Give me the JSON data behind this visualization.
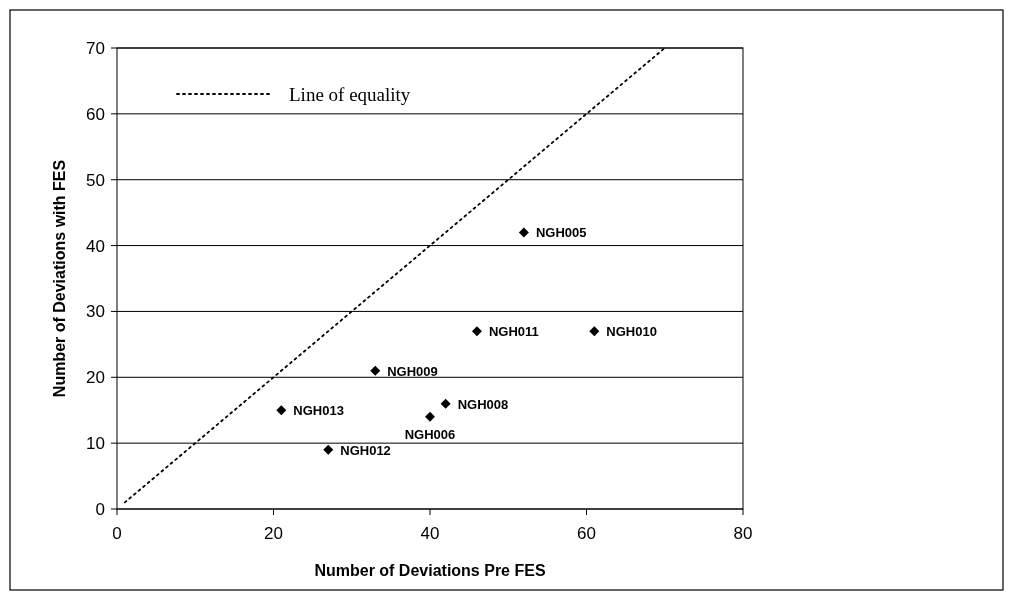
{
  "chart_data": {
    "type": "scatter",
    "xlabel": "Number of Deviations Pre FES",
    "ylabel": "Number of Deviations with FES",
    "xlim": [
      0,
      80
    ],
    "xticks": [
      0,
      20,
      40,
      60,
      80
    ],
    "ylim": [
      0,
      70
    ],
    "yticks": [
      0,
      10,
      20,
      30,
      40,
      50,
      60,
      70
    ],
    "grid": "y",
    "legend": "top left",
    "marker": "diamond",
    "series": [
      {
        "color": "#000000",
        "x": [
          52,
          46,
          61,
          33,
          21,
          42,
          40,
          27
        ],
        "values": [
          42,
          27,
          27,
          21,
          15,
          16,
          14,
          9
        ]
      },
      {
        "type": "line",
        "name": "Line of equality",
        "color": "#000000",
        "line_style": "dotted",
        "marker": "none",
        "x": [
          1,
          70
        ],
        "values": [
          1,
          70
        ]
      }
    ],
    "annotations": [
      {
        "text": "NGH005",
        "x": 52,
        "y": 42
      },
      {
        "text": "NGH011",
        "x": 46,
        "y": 27
      },
      {
        "text": "NGH010",
        "x": 61,
        "y": 27
      },
      {
        "text": "NGH009",
        "x": 33,
        "y": 21
      },
      {
        "text": "NGH013",
        "x": 21,
        "y": 15
      },
      {
        "text": "NGH008",
        "x": 42,
        "y": 16
      },
      {
        "text": "NGH006",
        "x": 40,
        "y": 14
      },
      {
        "text": "NGH012",
        "x": 27,
        "y": 9
      }
    ]
  }
}
